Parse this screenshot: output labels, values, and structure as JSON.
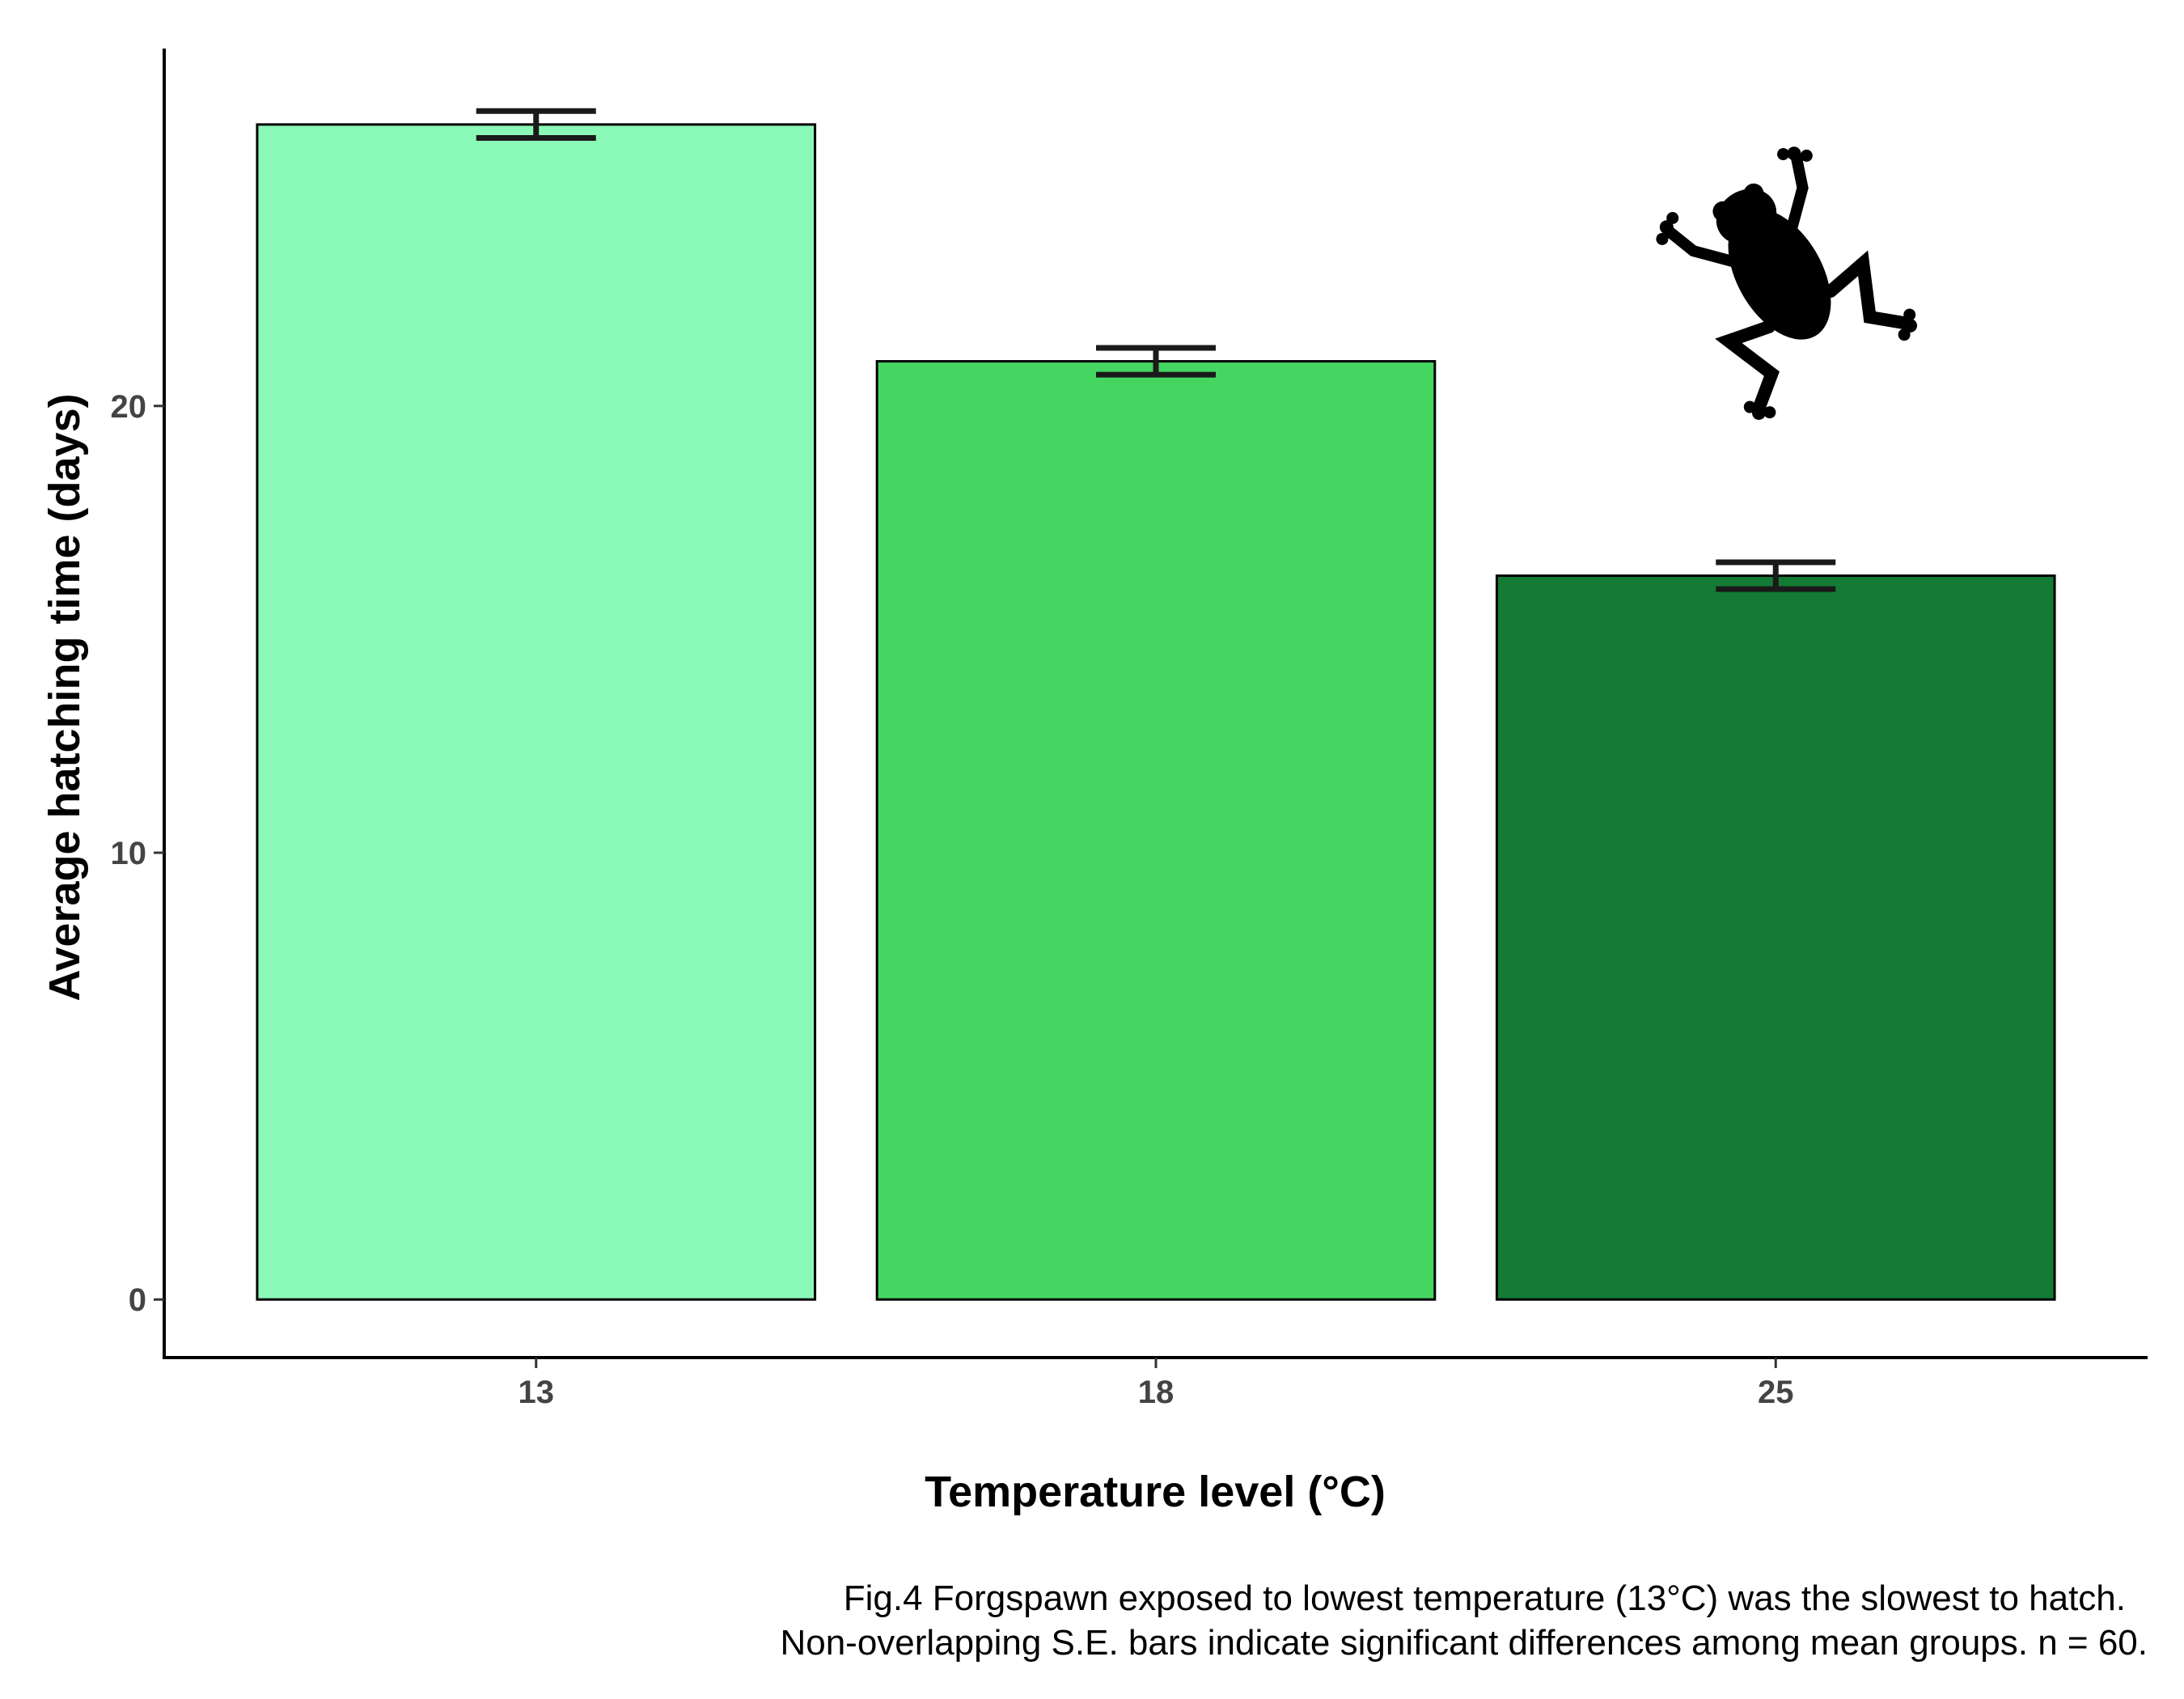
{
  "chart_data": {
    "type": "bar",
    "categories": [
      "13",
      "18",
      "25"
    ],
    "values": [
      26.3,
      21.0,
      16.2
    ],
    "errors": [
      0.3,
      0.3,
      0.3
    ],
    "xlabel": "Temperature level (°C)",
    "ylabel": "Average hatching time (days)",
    "yticks": [
      0,
      10,
      20
    ],
    "ylim": [
      -1.3,
      28.0
    ],
    "grid": false,
    "legend": "none",
    "colors": [
      "#8bf9b7",
      "#45d662",
      "#137b33"
    ],
    "caption_lines": [
      "Fig.4 Forgspawn exposed to lowest temperature (13°C) was the slowest to hatch.",
      "Non-overlapping S.E. bars indicate significant differences among mean groups. n = 60."
    ],
    "decoration_icon": "frog-silhouette-icon"
  }
}
